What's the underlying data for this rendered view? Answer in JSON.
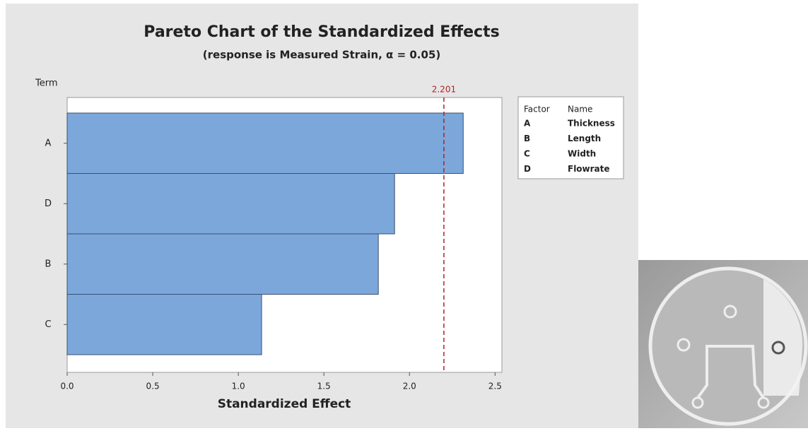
{
  "chart_data": {
    "type": "bar",
    "orientation": "horizontal",
    "title": "Pareto Chart of the Standardized Effects",
    "subtitle": "(response is Measured Strain, α = 0.05)",
    "y_label": "Term",
    "x_label": "Standardized Effect",
    "categories": [
      "A",
      "D",
      "B",
      "C"
    ],
    "values": [
      2.314,
      1.913,
      1.818,
      1.136
    ],
    "color": "#7ba7db",
    "reference_line": {
      "value": 2.201,
      "label": "2.201",
      "color": "#b22222"
    },
    "xlim": [
      0,
      2.54
    ],
    "xticks": [
      {
        "value": 0,
        "label": "0.0"
      },
      0.5,
      {
        "value": 1,
        "label": "1.0"
      },
      1.5,
      {
        "value": 2,
        "label": "2.0"
      },
      2.5
    ],
    "legend": {
      "headers": [
        "Factor",
        "Name"
      ],
      "rows": [
        [
          "A",
          "Thickness"
        ],
        [
          "B",
          "Length"
        ],
        [
          "C",
          "Width"
        ],
        [
          "D",
          "Flowrate"
        ]
      ]
    }
  }
}
